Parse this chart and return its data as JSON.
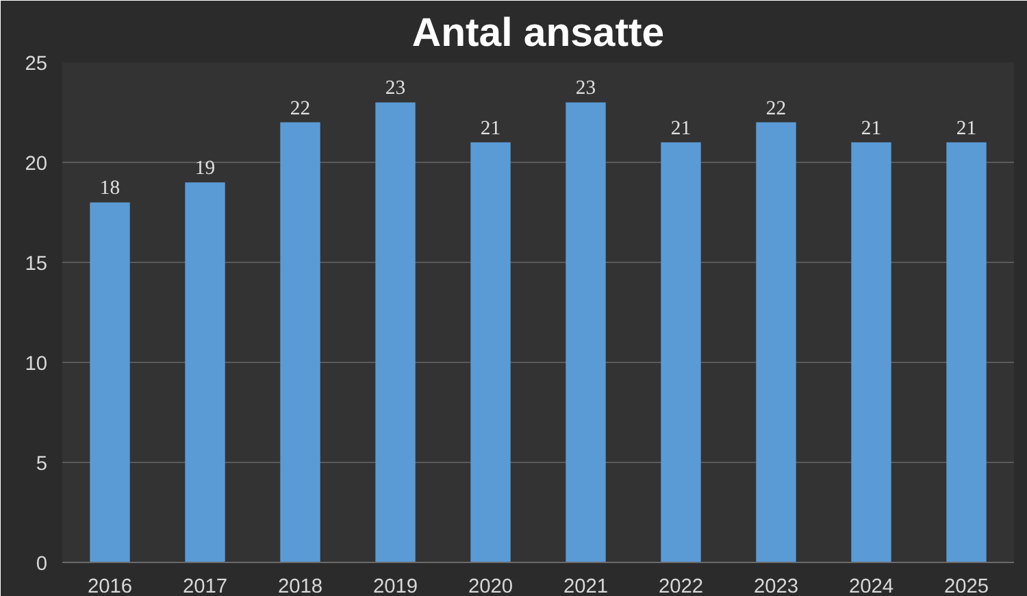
{
  "chart_data": {
    "type": "bar",
    "title": "Antal ansatte",
    "categories": [
      "2016",
      "2017",
      "2018",
      "2019",
      "2020",
      "2021",
      "2022",
      "2023",
      "2024",
      "2025"
    ],
    "values": [
      18,
      19,
      22,
      23,
      21,
      23,
      21,
      22,
      21,
      21
    ],
    "color": "#5b9bd5",
    "ylim": [
      0,
      25
    ],
    "yticks": [
      0,
      5,
      10,
      15,
      20,
      25
    ],
    "grid": "y",
    "data_labels": true
  }
}
